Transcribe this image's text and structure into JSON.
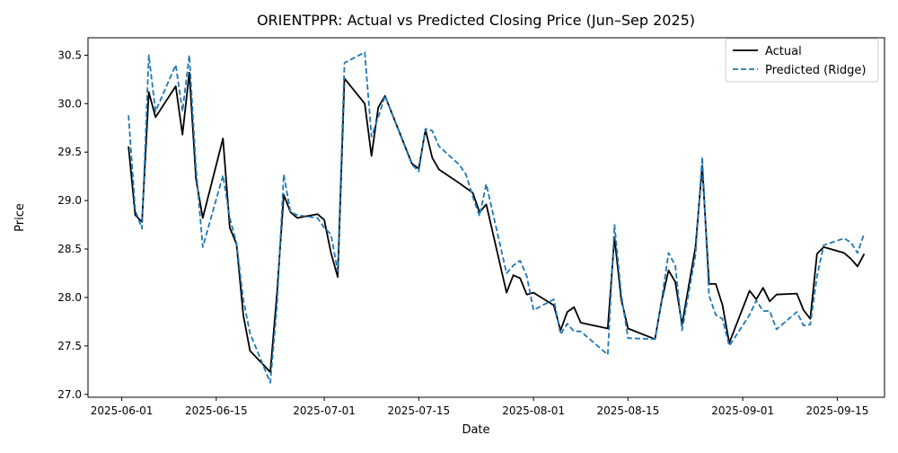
{
  "chart_data": {
    "type": "line",
    "title": "ORIENTPPR: Actual vs Predicted Closing Price (Jun–Sep 2025)",
    "xlabel": "Date",
    "ylabel": "Price",
    "x_tick_labels": [
      "2025-06-01",
      "2025-06-15",
      "2025-07-01",
      "2025-07-15",
      "2025-08-01",
      "2025-08-15",
      "2025-09-01",
      "2025-09-15"
    ],
    "y_tick_labels": [
      "27.0",
      "27.5",
      "28.0",
      "28.5",
      "29.0",
      "29.5",
      "30.0",
      "30.5"
    ],
    "xlim": [
      "2025-05-27",
      "2025-09-22"
    ],
    "ylim": [
      26.97,
      30.68
    ],
    "legend_position": "top-right",
    "grid": false,
    "series": [
      {
        "name": "Actual",
        "color": "#000000",
        "style": "solid",
        "points": [
          [
            "2025-06-02",
            29.56
          ],
          [
            "2025-06-03",
            28.85
          ],
          [
            "2025-06-04",
            28.78
          ],
          [
            "2025-06-05",
            30.12
          ],
          [
            "2025-06-06",
            29.86
          ],
          [
            "2025-06-09",
            30.18
          ],
          [
            "2025-06-10",
            29.68
          ],
          [
            "2025-06-11",
            30.32
          ],
          [
            "2025-06-12",
            29.22
          ],
          [
            "2025-06-13",
            28.82
          ],
          [
            "2025-06-16",
            29.64
          ],
          [
            "2025-06-17",
            28.72
          ],
          [
            "2025-06-18",
            28.55
          ],
          [
            "2025-06-19",
            27.82
          ],
          [
            "2025-06-20",
            27.45
          ],
          [
            "2025-06-23",
            27.23
          ],
          [
            "2025-06-24",
            28.05
          ],
          [
            "2025-06-25",
            29.06
          ],
          [
            "2025-06-26",
            28.88
          ],
          [
            "2025-06-27",
            28.82
          ],
          [
            "2025-06-30",
            28.86
          ],
          [
            "2025-07-01",
            28.8
          ],
          [
            "2025-07-02",
            28.46
          ],
          [
            "2025-07-03",
            28.21
          ],
          [
            "2025-07-04",
            30.26
          ],
          [
            "2025-07-07",
            30.0
          ],
          [
            "2025-07-08",
            29.46
          ],
          [
            "2025-07-09",
            29.96
          ],
          [
            "2025-07-10",
            30.08
          ],
          [
            "2025-07-14",
            29.38
          ],
          [
            "2025-07-15",
            29.33
          ],
          [
            "2025-07-16",
            29.73
          ],
          [
            "2025-07-17",
            29.44
          ],
          [
            "2025-07-18",
            29.32
          ],
          [
            "2025-07-21",
            29.18
          ],
          [
            "2025-07-22",
            29.13
          ],
          [
            "2025-07-23",
            29.08
          ],
          [
            "2025-07-24",
            28.88
          ],
          [
            "2025-07-25",
            28.96
          ],
          [
            "2025-07-28",
            28.05
          ],
          [
            "2025-07-29",
            28.23
          ],
          [
            "2025-07-30",
            28.2
          ],
          [
            "2025-07-31",
            28.03
          ],
          [
            "2025-08-01",
            28.05
          ],
          [
            "2025-08-04",
            27.92
          ],
          [
            "2025-08-05",
            27.66
          ],
          [
            "2025-08-06",
            27.85
          ],
          [
            "2025-08-07",
            27.9
          ],
          [
            "2025-08-08",
            27.74
          ],
          [
            "2025-08-12",
            27.68
          ],
          [
            "2025-08-13",
            28.62
          ],
          [
            "2025-08-14",
            27.98
          ],
          [
            "2025-08-15",
            27.68
          ],
          [
            "2025-08-19",
            27.57
          ],
          [
            "2025-08-20",
            27.97
          ],
          [
            "2025-08-21",
            28.28
          ],
          [
            "2025-08-22",
            28.16
          ],
          [
            "2025-08-23",
            27.72
          ],
          [
            "2025-08-25",
            28.52
          ],
          [
            "2025-08-26",
            29.36
          ],
          [
            "2025-08-27",
            28.14
          ],
          [
            "2025-08-28",
            28.14
          ],
          [
            "2025-08-29",
            27.92
          ],
          [
            "2025-08-30",
            27.53
          ],
          [
            "2025-09-02",
            28.07
          ],
          [
            "2025-09-03",
            27.98
          ],
          [
            "2025-09-04",
            28.1
          ],
          [
            "2025-09-05",
            27.96
          ],
          [
            "2025-09-06",
            28.03
          ],
          [
            "2025-09-09",
            28.04
          ],
          [
            "2025-09-10",
            27.87
          ],
          [
            "2025-09-11",
            27.78
          ],
          [
            "2025-09-12",
            28.45
          ],
          [
            "2025-09-13",
            28.52
          ],
          [
            "2025-09-16",
            28.46
          ],
          [
            "2025-09-17",
            28.4
          ],
          [
            "2025-09-18",
            28.32
          ],
          [
            "2025-09-19",
            28.45
          ]
        ]
      },
      {
        "name": "Predicted (Ridge)",
        "color": "#1f77b4",
        "style": "dashed",
        "points": [
          [
            "2025-06-02",
            29.88
          ],
          [
            "2025-06-03",
            28.9
          ],
          [
            "2025-06-04",
            28.71
          ],
          [
            "2025-06-05",
            30.5
          ],
          [
            "2025-06-06",
            29.92
          ],
          [
            "2025-06-09",
            30.4
          ],
          [
            "2025-06-10",
            29.92
          ],
          [
            "2025-06-11",
            30.5
          ],
          [
            "2025-06-12",
            29.33
          ],
          [
            "2025-06-13",
            28.52
          ],
          [
            "2025-06-16",
            29.26
          ],
          [
            "2025-06-17",
            28.82
          ],
          [
            "2025-06-18",
            28.56
          ],
          [
            "2025-06-19",
            27.98
          ],
          [
            "2025-06-20",
            27.63
          ],
          [
            "2025-06-23",
            27.12
          ],
          [
            "2025-06-24",
            27.92
          ],
          [
            "2025-06-25",
            29.27
          ],
          [
            "2025-06-26",
            28.88
          ],
          [
            "2025-06-27",
            28.85
          ],
          [
            "2025-06-30",
            28.82
          ],
          [
            "2025-07-01",
            28.72
          ],
          [
            "2025-07-02",
            28.65
          ],
          [
            "2025-07-03",
            28.27
          ],
          [
            "2025-07-04",
            30.42
          ],
          [
            "2025-07-07",
            30.53
          ],
          [
            "2025-07-08",
            29.66
          ],
          [
            "2025-07-09",
            29.86
          ],
          [
            "2025-07-10",
            30.08
          ],
          [
            "2025-07-14",
            29.37
          ],
          [
            "2025-07-15",
            29.3
          ],
          [
            "2025-07-16",
            29.74
          ],
          [
            "2025-07-17",
            29.72
          ],
          [
            "2025-07-18",
            29.56
          ],
          [
            "2025-07-21",
            29.37
          ],
          [
            "2025-07-22",
            29.27
          ],
          [
            "2025-07-23",
            29.04
          ],
          [
            "2025-07-24",
            28.84
          ],
          [
            "2025-07-25",
            29.17
          ],
          [
            "2025-07-28",
            28.25
          ],
          [
            "2025-07-29",
            28.33
          ],
          [
            "2025-07-30",
            28.38
          ],
          [
            "2025-07-31",
            28.22
          ],
          [
            "2025-08-01",
            27.87
          ],
          [
            "2025-08-04",
            27.98
          ],
          [
            "2025-08-05",
            27.62
          ],
          [
            "2025-08-06",
            27.73
          ],
          [
            "2025-08-07",
            27.65
          ],
          [
            "2025-08-08",
            27.65
          ],
          [
            "2025-08-12",
            27.41
          ],
          [
            "2025-08-13",
            28.75
          ],
          [
            "2025-08-14",
            28.03
          ],
          [
            "2025-08-15",
            27.58
          ],
          [
            "2025-08-19",
            27.57
          ],
          [
            "2025-08-20",
            27.98
          ],
          [
            "2025-08-21",
            28.46
          ],
          [
            "2025-08-22",
            28.33
          ],
          [
            "2025-08-23",
            27.66
          ],
          [
            "2025-08-25",
            28.44
          ],
          [
            "2025-08-26",
            29.45
          ],
          [
            "2025-08-27",
            28.02
          ],
          [
            "2025-08-28",
            27.82
          ],
          [
            "2025-08-29",
            27.78
          ],
          [
            "2025-08-30",
            27.5
          ],
          [
            "2025-09-02",
            27.82
          ],
          [
            "2025-09-03",
            27.97
          ],
          [
            "2025-09-04",
            27.86
          ],
          [
            "2025-09-05",
            27.86
          ],
          [
            "2025-09-06",
            27.67
          ],
          [
            "2025-09-09",
            27.85
          ],
          [
            "2025-09-10",
            27.71
          ],
          [
            "2025-09-11",
            27.72
          ],
          [
            "2025-09-12",
            28.22
          ],
          [
            "2025-09-13",
            28.54
          ],
          [
            "2025-09-16",
            28.61
          ],
          [
            "2025-09-17",
            28.57
          ],
          [
            "2025-09-18",
            28.46
          ],
          [
            "2025-09-19",
            28.66
          ]
        ]
      }
    ]
  }
}
